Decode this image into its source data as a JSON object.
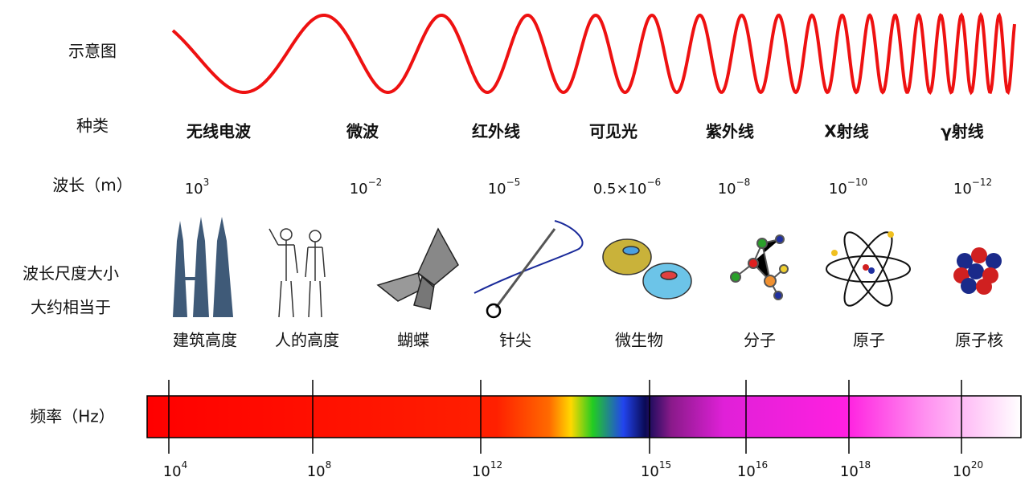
{
  "row_labels": [
    "示意图",
    "种类",
    "波长（m）",
    "波长尺度大小",
    "大约相当于",
    "频率（Hz）"
  ],
  "types": [
    "无线电波",
    "微波",
    "红外线",
    "可见光",
    "紫外线",
    "X射线",
    "γ射线"
  ],
  "wavelengths": [
    {
      "prefix": "",
      "base": "10",
      "exponent": "3"
    },
    {
      "prefix": "",
      "base": "10",
      "exponent": "−2"
    },
    {
      "prefix": "",
      "base": "10",
      "exponent": "−5"
    },
    {
      "prefix": "0.5×",
      "base": "10",
      "exponent": "−6"
    },
    {
      "prefix": "",
      "base": "10",
      "exponent": "−8"
    },
    {
      "prefix": "",
      "base": "10",
      "exponent": "−10"
    },
    {
      "prefix": "",
      "base": "10",
      "exponent": "−12"
    }
  ],
  "comparisons": [
    "建筑高度",
    "人的高度",
    "蝴蝶",
    "针尖",
    "微生物",
    "分子",
    "原子",
    "原子核"
  ],
  "frequencies": [
    {
      "base": "10",
      "exponent": "4"
    },
    {
      "base": "10",
      "exponent": "8"
    },
    {
      "base": "10",
      "exponent": "12"
    },
    {
      "base": "10",
      "exponent": "15"
    },
    {
      "base": "10",
      "exponent": "16"
    },
    {
      "base": "10",
      "exponent": "18"
    },
    {
      "base": "10",
      "exponent": "20"
    }
  ]
}
